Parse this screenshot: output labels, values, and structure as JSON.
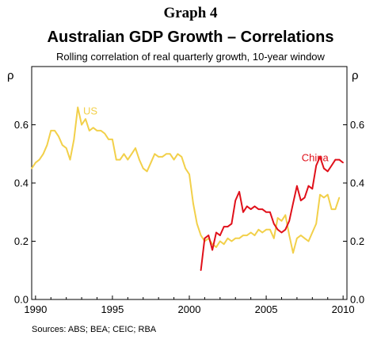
{
  "header": {
    "graph_number": "Graph 4",
    "title": "Australian GDP Growth – Correlations",
    "subtitle": "Rolling correlation of real quarterly growth, 10-year window"
  },
  "footer": {
    "sources": "Sources: ABS; BEA; CEIC; RBA"
  },
  "colors": {
    "us": "#f2d04a",
    "china": "#e0101a",
    "axis": "#000000"
  },
  "chart_data": {
    "type": "line",
    "title": "Australian GDP Growth – Correlations",
    "subtitle": "Rolling correlation of real quarterly growth, 10-year window",
    "ylabel_left": "ρ",
    "ylabel_right": "ρ",
    "xlim": [
      1989.75,
      2010.25
    ],
    "ylim": [
      0.0,
      0.8
    ],
    "x_ticks": [
      1990,
      1995,
      2000,
      2005,
      2010
    ],
    "y_ticks": [
      0.0,
      0.2,
      0.4,
      0.6
    ],
    "y_tick_labels": [
      "0.0",
      "0.2",
      "0.4",
      "0.6"
    ],
    "grid": false,
    "series": [
      {
        "name": "US",
        "color": "#f2d04a",
        "x": [
          1989.75,
          1990.0,
          1990.25,
          1990.5,
          1990.75,
          1991.0,
          1991.25,
          1991.5,
          1991.75,
          1992.0,
          1992.25,
          1992.5,
          1992.75,
          1993.0,
          1993.25,
          1993.5,
          1993.75,
          1994.0,
          1994.25,
          1994.5,
          1994.75,
          1995.0,
          1995.25,
          1995.5,
          1995.75,
          1996.0,
          1996.25,
          1996.5,
          1996.75,
          1997.0,
          1997.25,
          1997.5,
          1997.75,
          1998.0,
          1998.25,
          1998.5,
          1998.75,
          1999.0,
          1999.25,
          1999.5,
          1999.75,
          2000.0,
          2000.25,
          2000.5,
          2000.75,
          2001.0,
          2001.25,
          2001.5,
          2001.75,
          2002.0,
          2002.25,
          2002.5,
          2002.75,
          2003.0,
          2003.25,
          2003.5,
          2003.75,
          2004.0,
          2004.25,
          2004.5,
          2004.75,
          2005.0,
          2005.25,
          2005.5,
          2005.75,
          2006.0,
          2006.25,
          2006.5,
          2006.75,
          2007.0,
          2007.25,
          2007.5,
          2007.75,
          2008.0,
          2008.25,
          2008.5,
          2008.75,
          2009.0,
          2009.25,
          2009.5,
          2009.75
        ],
        "values": [
          0.45,
          0.47,
          0.48,
          0.5,
          0.53,
          0.58,
          0.58,
          0.56,
          0.53,
          0.52,
          0.48,
          0.55,
          0.66,
          0.6,
          0.62,
          0.58,
          0.59,
          0.58,
          0.58,
          0.57,
          0.55,
          0.55,
          0.48,
          0.48,
          0.5,
          0.48,
          0.5,
          0.52,
          0.48,
          0.45,
          0.44,
          0.47,
          0.5,
          0.49,
          0.49,
          0.5,
          0.5,
          0.48,
          0.5,
          0.49,
          0.45,
          0.43,
          0.33,
          0.26,
          0.22,
          0.2,
          0.21,
          0.19,
          0.18,
          0.2,
          0.19,
          0.21,
          0.2,
          0.21,
          0.21,
          0.22,
          0.22,
          0.23,
          0.22,
          0.24,
          0.23,
          0.24,
          0.24,
          0.21,
          0.28,
          0.27,
          0.29,
          0.22,
          0.16,
          0.21,
          0.22,
          0.21,
          0.2,
          0.23,
          0.26,
          0.36,
          0.35,
          0.36,
          0.31,
          0.31,
          0.35
        ]
      },
      {
        "name": "China",
        "color": "#e0101a",
        "x": [
          2000.75,
          2001.0,
          2001.25,
          2001.5,
          2001.75,
          2002.0,
          2002.25,
          2002.5,
          2002.75,
          2003.0,
          2003.25,
          2003.5,
          2003.75,
          2004.0,
          2004.25,
          2004.5,
          2004.75,
          2005.0,
          2005.25,
          2005.5,
          2005.75,
          2006.0,
          2006.25,
          2006.5,
          2006.75,
          2007.0,
          2007.25,
          2007.5,
          2007.75,
          2008.0,
          2008.25,
          2008.5,
          2008.75,
          2009.0,
          2009.25,
          2009.5,
          2009.75,
          2010.0
        ],
        "values": [
          0.1,
          0.21,
          0.22,
          0.17,
          0.23,
          0.22,
          0.25,
          0.25,
          0.26,
          0.34,
          0.37,
          0.3,
          0.32,
          0.31,
          0.32,
          0.31,
          0.31,
          0.3,
          0.3,
          0.26,
          0.24,
          0.23,
          0.24,
          0.27,
          0.33,
          0.39,
          0.34,
          0.35,
          0.39,
          0.38,
          0.46,
          0.49,
          0.45,
          0.44,
          0.46,
          0.48,
          0.48,
          0.47
        ]
      }
    ],
    "annotations": [
      {
        "text": "US",
        "series": "US",
        "x": 1993.1,
        "y": 0.635
      },
      {
        "text": "China",
        "series": "China",
        "x": 2007.3,
        "y": 0.475
      }
    ]
  }
}
